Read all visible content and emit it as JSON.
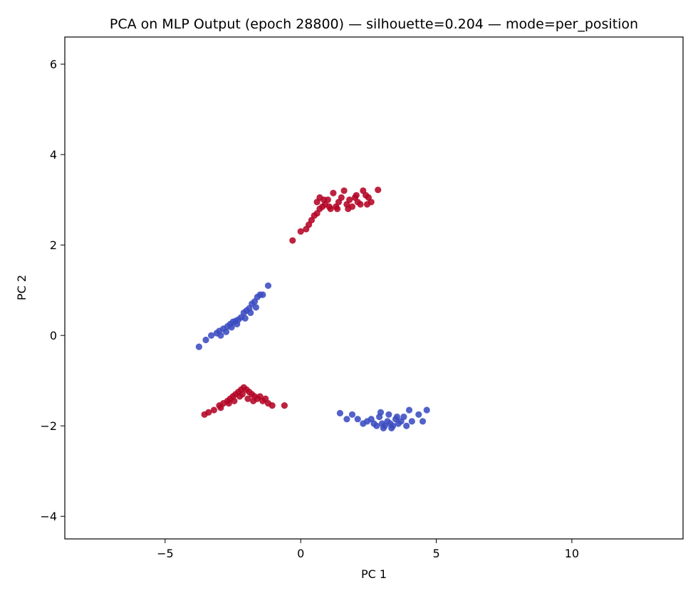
{
  "chart_data": {
    "type": "scatter",
    "title": "PCA on MLP Output (epoch 28800) — silhouette=0.204 — mode=per_position",
    "xlabel": "PC 1",
    "ylabel": "PC 2",
    "xlim": [
      -8.7,
      14.1
    ],
    "ylim": [
      -4.5,
      6.6
    ],
    "xticks": [
      -5,
      0,
      5,
      10
    ],
    "yticks": [
      -4,
      -2,
      0,
      2,
      4,
      6
    ],
    "grid": false,
    "legend": "none",
    "series": [
      {
        "color": "#b40426",
        "points": [
          [
            -0.3,
            2.1
          ],
          [
            0.0,
            2.3
          ],
          [
            0.2,
            2.35
          ],
          [
            0.3,
            2.45
          ],
          [
            0.4,
            2.55
          ],
          [
            0.5,
            2.65
          ],
          [
            0.6,
            2.7
          ],
          [
            0.7,
            2.8
          ],
          [
            0.6,
            2.95
          ],
          [
            0.7,
            3.05
          ],
          [
            0.8,
            2.85
          ],
          [
            0.9,
            2.9
          ],
          [
            1.0,
            3.0
          ],
          [
            1.1,
            2.8
          ],
          [
            1.2,
            3.15
          ],
          [
            1.3,
            2.85
          ],
          [
            1.4,
            2.95
          ],
          [
            1.5,
            3.05
          ],
          [
            1.6,
            3.2
          ],
          [
            1.7,
            2.9
          ],
          [
            1.8,
            3.0
          ],
          [
            1.9,
            2.85
          ],
          [
            2.0,
            3.05
          ],
          [
            2.1,
            2.95
          ],
          [
            2.2,
            2.9
          ],
          [
            2.3,
            3.2
          ],
          [
            2.4,
            3.1
          ],
          [
            2.5,
            3.05
          ],
          [
            2.6,
            2.95
          ],
          [
            2.85,
            3.22
          ],
          [
            1.05,
            2.85
          ],
          [
            1.35,
            2.8
          ],
          [
            1.75,
            2.8
          ],
          [
            0.85,
            3.0
          ],
          [
            2.05,
            3.1
          ],
          [
            2.45,
            2.9
          ],
          [
            -3.55,
            -1.75
          ],
          [
            -3.4,
            -1.7
          ],
          [
            -3.2,
            -1.65
          ],
          [
            -3.0,
            -1.55
          ],
          [
            -2.85,
            -1.5
          ],
          [
            -2.7,
            -1.45
          ],
          [
            -2.6,
            -1.4
          ],
          [
            -2.5,
            -1.35
          ],
          [
            -2.4,
            -1.3
          ],
          [
            -2.3,
            -1.25
          ],
          [
            -2.2,
            -1.2
          ],
          [
            -2.1,
            -1.15
          ],
          [
            -2.0,
            -1.2
          ],
          [
            -1.9,
            -1.25
          ],
          [
            -1.8,
            -1.3
          ],
          [
            -1.7,
            -1.35
          ],
          [
            -1.6,
            -1.4
          ],
          [
            -1.5,
            -1.35
          ],
          [
            -1.4,
            -1.45
          ],
          [
            -1.3,
            -1.4
          ],
          [
            -1.2,
            -1.5
          ],
          [
            -1.05,
            -1.55
          ],
          [
            -0.6,
            -1.55
          ],
          [
            -2.15,
            -1.3
          ],
          [
            -2.25,
            -1.35
          ],
          [
            -1.95,
            -1.4
          ],
          [
            -1.75,
            -1.45
          ],
          [
            -2.45,
            -1.45
          ],
          [
            -2.65,
            -1.5
          ],
          [
            -2.95,
            -1.6
          ]
        ]
      },
      {
        "color": "#3b4cc0",
        "points": [
          [
            -3.75,
            -0.25
          ],
          [
            -3.5,
            -0.1
          ],
          [
            -3.3,
            0.0
          ],
          [
            -3.1,
            0.05
          ],
          [
            -3.0,
            0.1
          ],
          [
            -2.85,
            0.15
          ],
          [
            -2.7,
            0.2
          ],
          [
            -2.6,
            0.25
          ],
          [
            -2.5,
            0.3
          ],
          [
            -2.4,
            0.32
          ],
          [
            -2.3,
            0.35
          ],
          [
            -2.2,
            0.4
          ],
          [
            -2.1,
            0.5
          ],
          [
            -2.0,
            0.55
          ],
          [
            -1.9,
            0.6
          ],
          [
            -1.8,
            0.7
          ],
          [
            -1.7,
            0.75
          ],
          [
            -1.6,
            0.85
          ],
          [
            -1.5,
            0.9
          ],
          [
            -1.4,
            0.9
          ],
          [
            -1.2,
            1.1
          ],
          [
            -2.95,
            0.0
          ],
          [
            -2.75,
            0.08
          ],
          [
            -2.55,
            0.18
          ],
          [
            -2.35,
            0.25
          ],
          [
            -2.05,
            0.38
          ],
          [
            -1.85,
            0.5
          ],
          [
            -1.65,
            0.62
          ],
          [
            1.45,
            -1.72
          ],
          [
            1.7,
            -1.85
          ],
          [
            1.9,
            -1.75
          ],
          [
            2.1,
            -1.85
          ],
          [
            2.3,
            -1.95
          ],
          [
            2.45,
            -1.9
          ],
          [
            2.6,
            -1.85
          ],
          [
            2.7,
            -1.95
          ],
          [
            2.8,
            -2.0
          ],
          [
            2.9,
            -1.8
          ],
          [
            3.0,
            -1.95
          ],
          [
            3.1,
            -2.0
          ],
          [
            3.2,
            -1.9
          ],
          [
            3.3,
            -1.95
          ],
          [
            3.4,
            -2.0
          ],
          [
            3.5,
            -1.85
          ],
          [
            3.6,
            -1.95
          ],
          [
            3.7,
            -1.9
          ],
          [
            3.8,
            -1.8
          ],
          [
            3.9,
            -2.0
          ],
          [
            4.0,
            -1.65
          ],
          [
            4.1,
            -1.9
          ],
          [
            4.35,
            -1.75
          ],
          [
            4.5,
            -1.9
          ],
          [
            4.65,
            -1.65
          ],
          [
            2.95,
            -1.7
          ],
          [
            3.25,
            -1.75
          ],
          [
            3.55,
            -1.8
          ],
          [
            3.05,
            -2.05
          ],
          [
            3.35,
            -2.05
          ]
        ]
      }
    ]
  }
}
